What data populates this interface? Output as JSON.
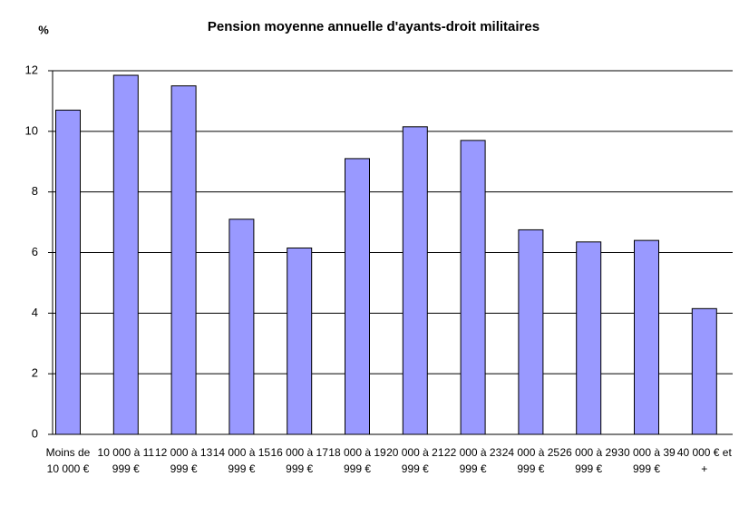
{
  "chart_data": {
    "type": "bar",
    "title": "Pension moyenne annuelle d'ayants-droit militaires",
    "y_label": "%",
    "categories": [
      "Moins de 10 000 €",
      "10 000 à 11 999 €",
      "12 000 à 13 999 €",
      "14 000 à 15 999 €",
      "16 000 à 17 999 €",
      "18 000 à 19 999 €",
      "20 000 à 21 999 €",
      "22 000 à 23 999 €",
      "24 000 à 25 999 €",
      "26 000 à 29 999 €",
      "30 000 à 39 999 €",
      "40 000 € et +"
    ],
    "values": [
      10.7,
      11.85,
      11.5,
      7.1,
      6.15,
      9.1,
      10.15,
      9.7,
      6.75,
      6.35,
      6.4,
      4.15
    ],
    "color": "#9999ff",
    "ylim": [
      0,
      12
    ],
    "yticks": [
      0,
      2,
      4,
      6,
      8,
      10,
      12
    ],
    "grid": true
  }
}
